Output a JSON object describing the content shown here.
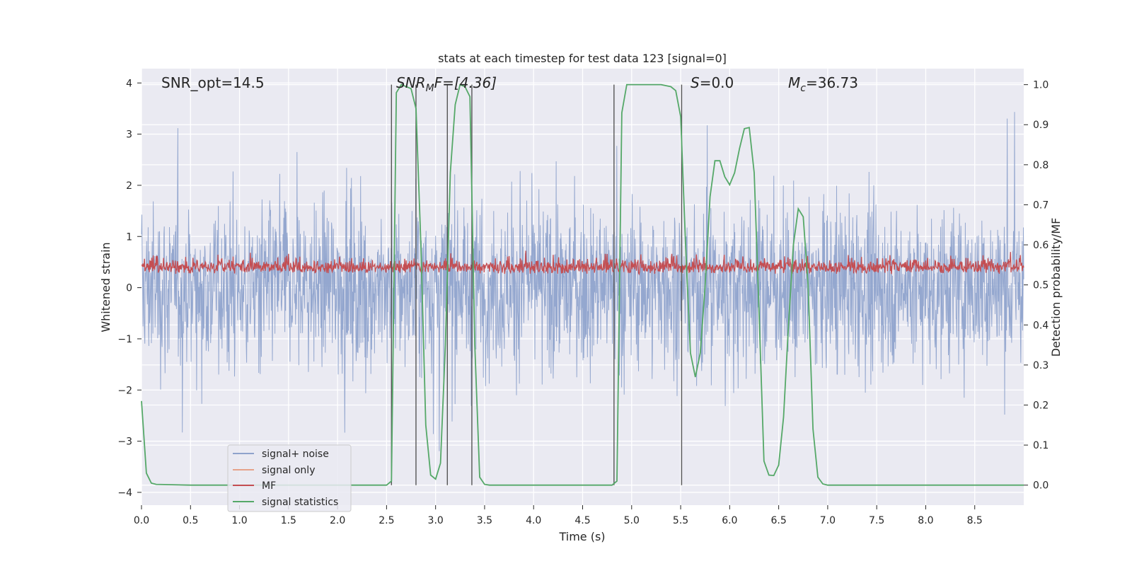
{
  "chart_data": {
    "type": "line",
    "title": "stats at each timestep for test data 123 [signal=0]",
    "xlabel": "Time (s)",
    "ylabel": "Whitened strain",
    "y2label": "Detection probability/MF",
    "xlim": [
      0.0,
      9.0
    ],
    "ylim": [
      -4.25,
      4.28
    ],
    "y2lim": [
      -0.05,
      1.04
    ],
    "xticks": [
      0.0,
      0.5,
      1.0,
      1.5,
      2.0,
      2.5,
      3.0,
      3.5,
      4.0,
      4.5,
      5.0,
      5.5,
      6.0,
      6.5,
      7.0,
      7.5,
      8.0,
      8.5
    ],
    "xtick_labels": [
      "0.0",
      "0.5",
      "1.0",
      "1.5",
      "2.0",
      "2.5",
      "3.0",
      "3.5",
      "4.0",
      "4.5",
      "5.0",
      "5.5",
      "6.0",
      "6.5",
      "7.0",
      "7.5",
      "8.0",
      "8.5"
    ],
    "yticks": [
      4,
      3,
      2,
      1,
      0,
      -1,
      -2,
      -3,
      -4
    ],
    "ytick_labels": [
      "4",
      "3",
      "2",
      "1",
      "0",
      "−1",
      "−2",
      "−3",
      "−4"
    ],
    "y2ticks": [
      1.0,
      0.9,
      0.8,
      0.7,
      0.6,
      0.5,
      0.4,
      0.3,
      0.2,
      0.1,
      0.0
    ],
    "y2tick_labels": [
      "1.0",
      "0.9",
      "0.8",
      "0.7",
      "0.6",
      "0.5",
      "0.4",
      "0.3",
      "0.2",
      "0.1",
      "0.0"
    ],
    "grid": true,
    "legend_position": "lower-left",
    "annotations": {
      "snr_opt": "SNR_opt=14.5",
      "snr_mf_base": "SNR",
      "snr_mf_sub": "M",
      "snr_mf_rest": "F=[4.36]",
      "s_italic": "S",
      "s_rest": "=0.0",
      "mc_base": "M",
      "mc_sub": "c",
      "mc_rest": "=36.73"
    },
    "series": [
      {
        "name": "signal+ noise",
        "color": "#8fa3cc",
        "description": "whitened strain noise, approx. symmetric, spread roughly -3.9 to 3.9"
      },
      {
        "name": "signal only",
        "color": "#e6a28a",
        "values": []
      },
      {
        "name": "MF",
        "color": "#c44e52",
        "description": "matched filter output on left axis, approx. 0.0 to 0.9"
      },
      {
        "name": "signal statistics",
        "color": "#55a868",
        "axis": "right",
        "x": [
          0.0,
          0.05,
          0.1,
          0.15,
          0.5,
          1.0,
          2.0,
          2.5,
          2.55,
          2.6,
          2.65,
          2.75,
          2.8,
          2.85,
          2.9,
          2.95,
          3.0,
          3.05,
          3.1,
          3.15,
          3.2,
          3.25,
          3.3,
          3.35,
          3.4,
          3.45,
          3.5,
          3.55,
          4.5,
          4.8,
          4.85,
          4.9,
          4.95,
          5.3,
          5.4,
          5.45,
          5.5,
          5.55,
          5.6,
          5.65,
          5.7,
          5.75,
          5.8,
          5.85,
          5.9,
          5.95,
          6.0,
          6.05,
          6.1,
          6.15,
          6.2,
          6.25,
          6.3,
          6.35,
          6.4,
          6.45,
          6.5,
          6.55,
          6.6,
          6.65,
          6.7,
          6.75,
          6.8,
          6.85,
          6.9,
          6.95,
          7.0,
          7.05,
          7.1,
          7.15,
          7.2,
          7.25,
          7.3,
          7.35,
          7.5,
          9.0
        ],
        "values": [
          0.21,
          0.03,
          0.005,
          0.002,
          0.0,
          0.0,
          0.0,
          0.0,
          0.01,
          0.98,
          1.0,
          0.99,
          0.94,
          0.6,
          0.15,
          0.025,
          0.015,
          0.055,
          0.35,
          0.78,
          0.95,
          1.0,
          0.995,
          0.97,
          0.35,
          0.02,
          0.002,
          0.0,
          0.0,
          0.0,
          0.01,
          0.93,
          1.0,
          1.0,
          0.995,
          0.985,
          0.92,
          0.6,
          0.33,
          0.27,
          0.33,
          0.5,
          0.72,
          0.81,
          0.81,
          0.77,
          0.75,
          0.78,
          0.84,
          0.89,
          0.893,
          0.78,
          0.43,
          0.06,
          0.025,
          0.024,
          0.05,
          0.17,
          0.4,
          0.6,
          0.69,
          0.67,
          0.5,
          0.14,
          0.02,
          0.003,
          0.0,
          0.0,
          0.0,
          0.0,
          0.0,
          0.0,
          0.0,
          0.0,
          0.0,
          0.0
        ]
      }
    ],
    "vertical_lines_x": [
      2.55,
      2.8,
      3.12,
      3.37,
      4.82,
      5.51
    ]
  }
}
